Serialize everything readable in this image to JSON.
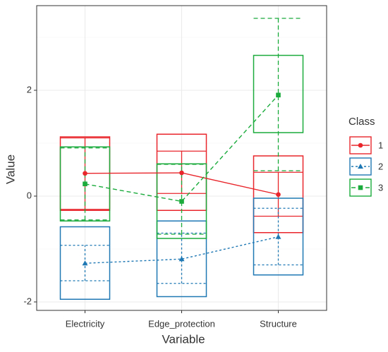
{
  "chart_data": {
    "type": "box-mean",
    "x_label": "Variable",
    "y_label": "Value",
    "categories": [
      "Electricity",
      "Edge_protection",
      "Structure"
    ],
    "ylim": [
      -2.16,
      3.6
    ],
    "yticks": [
      -2,
      0,
      2
    ],
    "yminor": [
      -1,
      1,
      3
    ],
    "grid": true,
    "legend_title": "Class",
    "legend_position": "right",
    "series": [
      {
        "name": "1",
        "color": "#e8262b",
        "dash": "none",
        "marker": "circle",
        "box_low": [
          -0.27,
          -0.27,
          -0.69
        ],
        "box_high": [
          1.12,
          1.17,
          0.76
        ],
        "error_low": [
          -0.25,
          0.05,
          -0.38
        ],
        "error_high": [
          1.1,
          0.85,
          0.45
        ],
        "values": [
          0.43,
          0.44,
          0.03
        ]
      },
      {
        "name": "2",
        "color": "#1f78b4",
        "dash": "3,3",
        "marker": "triangle",
        "box_low": [
          -1.95,
          -1.9,
          -1.49
        ],
        "box_high": [
          -0.58,
          -0.47,
          -0.04
        ],
        "error_low": [
          -1.6,
          -1.65,
          -1.3
        ],
        "error_high": [
          -0.93,
          -0.7,
          -0.23
        ],
        "values": [
          -1.27,
          -1.19,
          -0.77
        ]
      },
      {
        "name": "3",
        "color": "#1aab3c",
        "dash": "6,4",
        "marker": "square",
        "box_low": [
          -0.47,
          -0.8,
          1.2
        ],
        "box_high": [
          0.93,
          0.61,
          2.66
        ],
        "error_low": [
          -0.45,
          -0.72,
          0.48
        ],
        "error_high": [
          0.91,
          0.6,
          3.36
        ],
        "values": [
          0.23,
          -0.1,
          1.91
        ]
      }
    ]
  }
}
